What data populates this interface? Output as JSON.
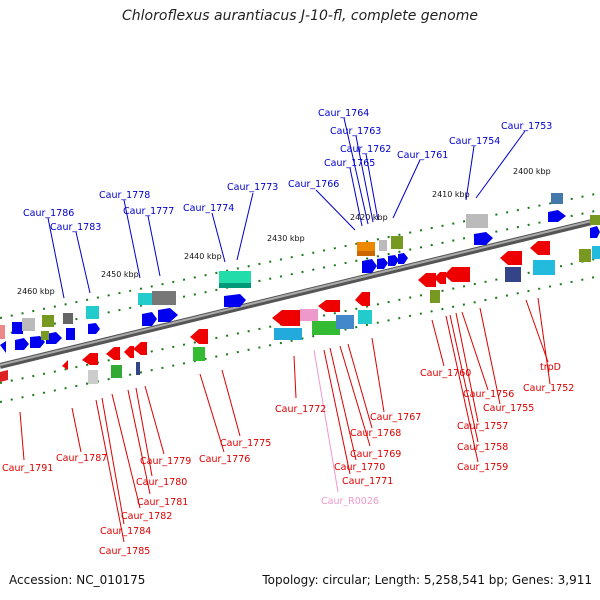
{
  "title": "Chloroflexus aurantiacus J-10-fl, complete genome",
  "footer": {
    "accession": "Accession: NC_010175",
    "topology": "Topology: circular; Length: 5,258,541 bp; Genes: 3,911"
  },
  "colors": {
    "forward_label": "#0000cc",
    "reverse_label": "#dd0000",
    "rna_label": "#ee99cc",
    "forward_gene": "#0000ee",
    "reverse_gene": "#ee0000",
    "backbone": "#777777",
    "tick": "#1a7a1a"
  },
  "scale_ticks": [
    "2460 kbp",
    "2450 kbp",
    "2440 kbp",
    "2430 kbp",
    "2420 kbp",
    "2410 kbp",
    "2400 kbp"
  ],
  "forward_labels": [
    "Caur_1786",
    "Caur_1783",
    "Caur_1778",
    "Caur_1777",
    "Caur_1774",
    "Caur_1773",
    "Caur_1766",
    "Caur_1765",
    "Caur_1764",
    "Caur_1763",
    "Caur_1762",
    "Caur_1761",
    "Caur_1754",
    "Caur_1753"
  ],
  "reverse_labels": [
    "Caur_1791",
    "Caur_1787",
    "Caur_1785",
    "Caur_1784",
    "Caur_1782",
    "Caur_1781",
    "Caur_1780",
    "Caur_1779",
    "Caur_1776",
    "Caur_1775",
    "Caur_1772",
    "Caur_1771",
    "Caur_1770",
    "Caur_1769",
    "Caur_1768",
    "Caur_1767",
    "Caur_1760",
    "Caur_1759",
    "Caur_1758",
    "Caur_1757",
    "Caur_1756",
    "Caur_1755",
    "trpD",
    "Caur_1752"
  ],
  "rna_labels": [
    "Caur_R0026"
  ]
}
